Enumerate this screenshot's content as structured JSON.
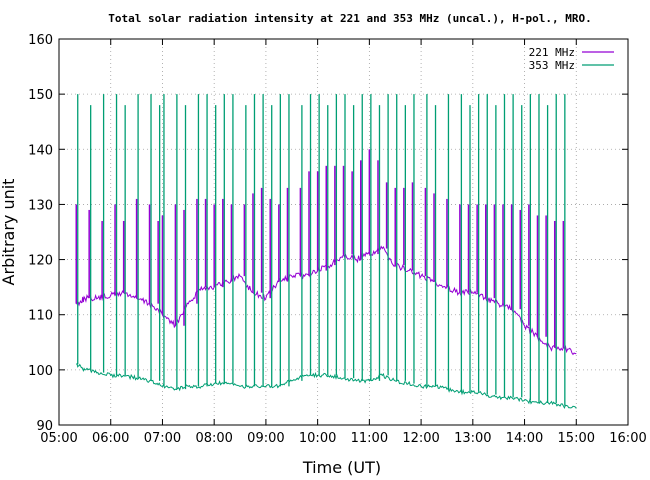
{
  "chart_data": {
    "type": "line",
    "title": "Total solar radiation intensity at 221 and 353 MHz (uncal.), H-pol., MRO.",
    "xlabel": "Time (UT)",
    "ylabel": "Arbitrary unit",
    "xlim": [
      "05:00",
      "16:00"
    ],
    "ylim": [
      90,
      160
    ],
    "x_ticks": [
      "05:00",
      "06:00",
      "07:00",
      "08:00",
      "09:00",
      "10:00",
      "11:00",
      "12:00",
      "13:00",
      "14:00",
      "15:00",
      "16:00"
    ],
    "y_ticks": [
      "90",
      "100",
      "110",
      "120",
      "130",
      "140",
      "150",
      "160"
    ],
    "grid": true,
    "grid_style": "dotted",
    "legend_position": "top-right",
    "series": [
      {
        "name": "221 MHz",
        "color": "#9400d3",
        "x": [
          "05:20",
          "05:30",
          "05:45",
          "06:00",
          "06:15",
          "06:30",
          "06:45",
          "07:00",
          "07:15",
          "07:30",
          "07:45",
          "08:00",
          "08:15",
          "08:30",
          "08:45",
          "09:00",
          "09:15",
          "09:30",
          "09:45",
          "10:00",
          "10:15",
          "10:30",
          "10:45",
          "11:00",
          "11:15",
          "11:30",
          "11:45",
          "12:00",
          "12:15",
          "12:30",
          "12:45",
          "13:00",
          "13:15",
          "13:30",
          "13:45",
          "14:00",
          "14:15",
          "14:30",
          "14:45",
          "15:00"
        ],
        "values": [
          112,
          113,
          113,
          113.5,
          114,
          113,
          112,
          110,
          108,
          112,
          115,
          115,
          116,
          117,
          114,
          113,
          116,
          117,
          117,
          118,
          119,
          121,
          120,
          121,
          122,
          119,
          118,
          117,
          116,
          115,
          114,
          114,
          113,
          112,
          111,
          108,
          106,
          104,
          104,
          103
        ],
        "spikes": {
          "x": [
            "05:20",
            "05:35",
            "05:50",
            "06:05",
            "06:15",
            "06:30",
            "06:45",
            "06:55",
            "07:00",
            "07:15",
            "07:25",
            "07:40",
            "07:50",
            "08:00",
            "08:10",
            "08:20",
            "08:35",
            "08:45",
            "08:55",
            "09:05",
            "09:15",
            "09:25",
            "09:40",
            "09:50",
            "10:00",
            "10:10",
            "10:20",
            "10:30",
            "10:40",
            "10:50",
            "11:00",
            "11:10",
            "11:20",
            "11:30",
            "11:40",
            "11:50",
            "12:05",
            "12:15",
            "12:30",
            "12:45",
            "12:55",
            "13:05",
            "13:15",
            "13:25",
            "13:35",
            "13:45",
            "13:55",
            "14:05",
            "14:15",
            "14:25",
            "14:35",
            "14:45"
          ],
          "values": [
            130,
            129,
            127,
            130,
            127,
            131,
            130,
            127,
            128,
            130,
            129,
            131,
            131,
            130,
            131,
            130,
            130,
            132,
            133,
            131,
            130,
            133,
            133,
            136,
            136,
            137,
            137,
            137,
            136,
            138,
            140,
            138,
            134,
            133,
            133,
            134,
            133,
            132,
            131,
            130,
            130,
            130,
            130,
            130,
            130,
            130,
            129,
            130,
            128,
            128,
            127,
            127
          ]
        }
      },
      {
        "name": "353 MHz",
        "color": "#009e73",
        "x": [
          "05:20",
          "05:30",
          "05:45",
          "06:00",
          "06:15",
          "06:30",
          "06:45",
          "07:00",
          "07:15",
          "07:30",
          "07:45",
          "08:00",
          "08:15",
          "08:30",
          "08:45",
          "09:00",
          "09:15",
          "09:30",
          "09:45",
          "10:00",
          "10:15",
          "10:30",
          "10:45",
          "11:00",
          "11:15",
          "11:30",
          "11:45",
          "12:00",
          "12:15",
          "12:30",
          "12:45",
          "13:00",
          "13:15",
          "13:30",
          "13:45",
          "14:00",
          "14:15",
          "14:30",
          "14:45",
          "15:00"
        ],
        "values": [
          101,
          100,
          99.5,
          99,
          99,
          98.5,
          98,
          97,
          96.5,
          97,
          97,
          97.5,
          97.5,
          97,
          97,
          97,
          97,
          98,
          99,
          99,
          99,
          98.5,
          98,
          98,
          99,
          98,
          97.5,
          97,
          97,
          96.5,
          96,
          96,
          95.5,
          95,
          95,
          94.5,
          94,
          94,
          93.5,
          93
        ]
      }
    ]
  }
}
